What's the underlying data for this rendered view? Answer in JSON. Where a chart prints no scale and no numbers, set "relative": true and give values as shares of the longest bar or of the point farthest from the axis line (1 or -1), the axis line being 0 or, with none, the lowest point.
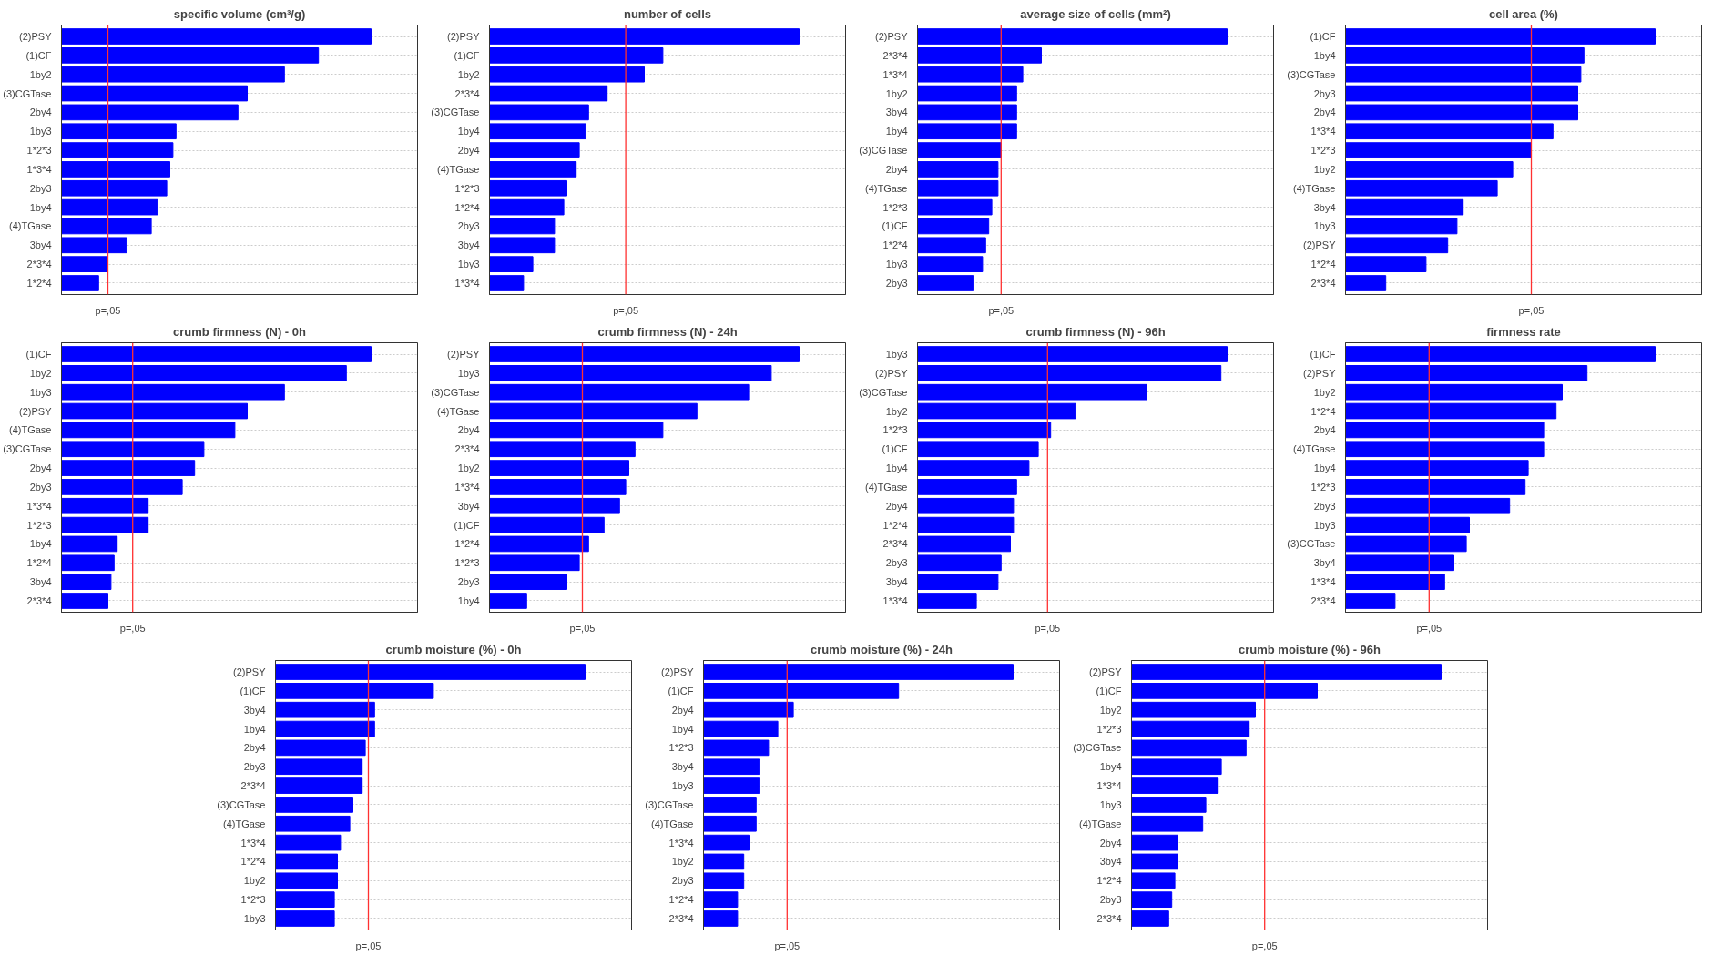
{
  "chart_data": [
    {
      "type": "bar",
      "orientation": "horizontal",
      "relative": true,
      "grid": "y",
      "color": "#0000ff",
      "title": "specific volume (cm³/g)",
      "categories": [
        "(2)PSY",
        "(1)CF",
        "1by2",
        "(3)CGTase",
        "2by4",
        "1by3",
        "1*2*3",
        "1*3*4",
        "2by3",
        "1by4",
        "(4)TGase",
        "3by4",
        "2*3*4",
        "1*2*4"
      ],
      "values": [
        1,
        0.83,
        0.72,
        0.6,
        0.57,
        0.37,
        0.36,
        0.35,
        0.34,
        0.31,
        0.29,
        0.21,
        0.15,
        0.12
      ],
      "ref_lines": [
        {
          "axis": "x",
          "value": 0.15,
          "label": "p=,05",
          "color": "#ff3030"
        }
      ]
    },
    {
      "type": "bar",
      "orientation": "horizontal",
      "relative": true,
      "grid": "y",
      "color": "#0000ff",
      "title": "number of cells",
      "categories": [
        "(2)PSY",
        "(1)CF",
        "1by2",
        "2*3*4",
        "(3)CGTase",
        "1by4",
        "2by4",
        "(4)TGase",
        "1*2*3",
        "1*2*4",
        "2by3",
        "3by4",
        "1by3",
        "1*3*4"
      ],
      "values": [
        1,
        0.56,
        0.5,
        0.38,
        0.32,
        0.31,
        0.29,
        0.28,
        0.25,
        0.24,
        0.21,
        0.21,
        0.14,
        0.11
      ],
      "ref_lines": [
        {
          "axis": "x",
          "value": 0.44,
          "label": "p=,05",
          "color": "#ff3030"
        }
      ]
    },
    {
      "type": "bar",
      "orientation": "horizontal",
      "relative": true,
      "grid": "y",
      "color": "#0000ff",
      "title": "average size of cells (mm²)",
      "categories": [
        "(2)PSY",
        "2*3*4",
        "1*3*4",
        "1by2",
        "3by4",
        "1by4",
        "(3)CGTase",
        "2by4",
        "(4)TGase",
        "1*2*3",
        "(1)CF",
        "1*2*4",
        "1by3",
        "2by3"
      ],
      "values": [
        1,
        0.4,
        0.34,
        0.32,
        0.32,
        0.32,
        0.27,
        0.26,
        0.26,
        0.24,
        0.23,
        0.22,
        0.21,
        0.18
      ],
      "ref_lines": [
        {
          "axis": "x",
          "value": 0.27,
          "label": "p=,05",
          "color": "#ff3030"
        }
      ]
    },
    {
      "type": "bar",
      "orientation": "horizontal",
      "relative": true,
      "grid": "y",
      "color": "#0000ff",
      "title": "cell area (%)",
      "categories": [
        "(1)CF",
        "1by4",
        "(3)CGTase",
        "2by3",
        "2by4",
        "1*3*4",
        "1*2*3",
        "1by2",
        "(4)TGase",
        "3by4",
        "1by3",
        "(2)PSY",
        "1*2*4",
        "2*3*4"
      ],
      "values": [
        1,
        0.77,
        0.76,
        0.75,
        0.75,
        0.67,
        0.6,
        0.54,
        0.49,
        0.38,
        0.36,
        0.33,
        0.26,
        0.13
      ],
      "ref_lines": [
        {
          "axis": "x",
          "value": 0.6,
          "label": "p=,05",
          "color": "#ff3030"
        }
      ]
    },
    {
      "type": "bar",
      "orientation": "horizontal",
      "relative": true,
      "grid": "y",
      "color": "#0000ff",
      "title": "crumb firmness (N) - 0h",
      "categories": [
        "(1)CF",
        "1by2",
        "1by3",
        "(2)PSY",
        "(4)TGase",
        "(3)CGTase",
        "2by4",
        "2by3",
        "1*3*4",
        "1*2*3",
        "1by4",
        "1*2*4",
        "3by4",
        "2*3*4"
      ],
      "values": [
        1,
        0.92,
        0.72,
        0.6,
        0.56,
        0.46,
        0.43,
        0.39,
        0.28,
        0.28,
        0.18,
        0.17,
        0.16,
        0.15
      ],
      "ref_lines": [
        {
          "axis": "x",
          "value": 0.23,
          "label": "p=,05",
          "color": "#ff3030"
        }
      ]
    },
    {
      "type": "bar",
      "orientation": "horizontal",
      "relative": true,
      "grid": "y",
      "color": "#0000ff",
      "title": "crumb firmness (N) - 24h",
      "categories": [
        "(2)PSY",
        "1by3",
        "(3)CGTase",
        "(4)TGase",
        "2by4",
        "2*3*4",
        "1by2",
        "1*3*4",
        "3by4",
        "(1)CF",
        "1*2*4",
        "1*2*3",
        "2by3",
        "1by4"
      ],
      "values": [
        1,
        0.91,
        0.84,
        0.67,
        0.56,
        0.47,
        0.45,
        0.44,
        0.42,
        0.37,
        0.32,
        0.29,
        0.25,
        0.12
      ],
      "ref_lines": [
        {
          "axis": "x",
          "value": 0.3,
          "label": "p=,05",
          "color": "#ff3030"
        }
      ]
    },
    {
      "type": "bar",
      "orientation": "horizontal",
      "relative": true,
      "grid": "y",
      "color": "#0000ff",
      "title": "crumb firmness (N) - 96h",
      "categories": [
        "1by3",
        "(2)PSY",
        "(3)CGTase",
        "1by2",
        "1*2*3",
        "(1)CF",
        "1by4",
        "(4)TGase",
        "2by4",
        "1*2*4",
        "2*3*4",
        "2by3",
        "3by4",
        "1*3*4"
      ],
      "values": [
        1,
        0.98,
        0.74,
        0.51,
        0.43,
        0.39,
        0.36,
        0.32,
        0.31,
        0.31,
        0.3,
        0.27,
        0.26,
        0.19
      ],
      "ref_lines": [
        {
          "axis": "x",
          "value": 0.42,
          "label": "p=,05",
          "color": "#ff3030"
        }
      ]
    },
    {
      "type": "bar",
      "orientation": "horizontal",
      "relative": true,
      "grid": "y",
      "color": "#0000ff",
      "title": "firmness rate",
      "categories": [
        "(1)CF",
        "(2)PSY",
        "1by2",
        "1*2*4",
        "2by4",
        "(4)TGase",
        "1by4",
        "1*2*3",
        "2by3",
        "1by3",
        "(3)CGTase",
        "3by4",
        "1*3*4",
        "2*3*4"
      ],
      "values": [
        1,
        0.78,
        0.7,
        0.68,
        0.64,
        0.64,
        0.59,
        0.58,
        0.53,
        0.4,
        0.39,
        0.35,
        0.32,
        0.16
      ],
      "ref_lines": [
        {
          "axis": "x",
          "value": 0.27,
          "label": "p=,05",
          "color": "#ff3030"
        }
      ]
    },
    {
      "type": "bar",
      "orientation": "horizontal",
      "relative": true,
      "grid": "y",
      "color": "#0000ff",
      "title": "crumb moisture (%) - 0h",
      "categories": [
        "(2)PSY",
        "(1)CF",
        "3by4",
        "1by4",
        "2by4",
        "2by3",
        "2*3*4",
        "(3)CGTase",
        "(4)TGase",
        "1*3*4",
        "1*2*4",
        "1by2",
        "1*2*3",
        "1by3"
      ],
      "values": [
        1,
        0.51,
        0.32,
        0.32,
        0.29,
        0.28,
        0.28,
        0.25,
        0.24,
        0.21,
        0.2,
        0.2,
        0.19,
        0.19
      ],
      "ref_lines": [
        {
          "axis": "x",
          "value": 0.3,
          "label": "p=,05",
          "color": "#ff3030"
        }
      ]
    },
    {
      "type": "bar",
      "orientation": "horizontal",
      "relative": true,
      "grid": "y",
      "color": "#0000ff",
      "title": "crumb moisture (%) - 24h",
      "categories": [
        "(2)PSY",
        "(1)CF",
        "2by4",
        "1by4",
        "1*2*3",
        "3by4",
        "1by3",
        "(3)CGTase",
        "(4)TGase",
        "1*3*4",
        "1by2",
        "2by3",
        "1*2*4",
        "2*3*4"
      ],
      "values": [
        1,
        0.63,
        0.29,
        0.24,
        0.21,
        0.18,
        0.18,
        0.17,
        0.17,
        0.15,
        0.13,
        0.13,
        0.11,
        0.11
      ],
      "ref_lines": [
        {
          "axis": "x",
          "value": 0.27,
          "label": "p=,05",
          "color": "#ff3030"
        }
      ]
    },
    {
      "type": "bar",
      "orientation": "horizontal",
      "relative": true,
      "grid": "y",
      "color": "#0000ff",
      "title": "crumb moisture (%) - 96h",
      "categories": [
        "(2)PSY",
        "(1)CF",
        "1by2",
        "1*2*3",
        "(3)CGTase",
        "1by4",
        "1*3*4",
        "1by3",
        "(4)TGase",
        "2by4",
        "3by4",
        "1*2*4",
        "2by3",
        "2*3*4"
      ],
      "values": [
        1,
        0.6,
        0.4,
        0.38,
        0.37,
        0.29,
        0.28,
        0.24,
        0.23,
        0.15,
        0.15,
        0.14,
        0.13,
        0.12
      ],
      "ref_lines": [
        {
          "axis": "x",
          "value": 0.43,
          "label": "p=,05",
          "color": "#ff3030"
        }
      ]
    }
  ]
}
